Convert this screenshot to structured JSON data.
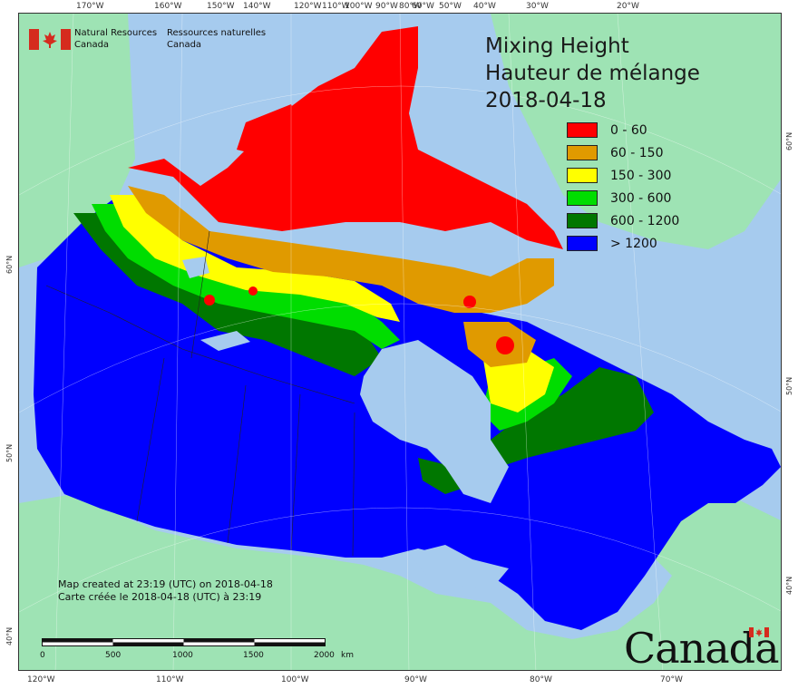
{
  "map": {
    "title_en": "Mixing Height",
    "title_fr": "Hauteur de mélange",
    "date": "2018-04-18",
    "agency": {
      "en_line1": "Natural Resources",
      "en_line2": "Canada",
      "fr_line1": "Ressources naturelles",
      "fr_line2": "Canada"
    },
    "legend": [
      {
        "label": "0 - 60",
        "color": "#ff0000"
      },
      {
        "label": "60 - 150",
        "color": "#e09a00"
      },
      {
        "label": "150 - 300",
        "color": "#ffff00"
      },
      {
        "label": "300 - 600",
        "color": "#00dd00"
      },
      {
        "label": "600 - 1200",
        "color": "#007700"
      },
      {
        "label": "> 1200",
        "color": "#0000ff"
      }
    ],
    "colors": {
      "ocean": "#a6cbee",
      "foreign_land": "#9ee3b4",
      "flag_red": "#d52b1e"
    },
    "credit_en": "Map created at 23:19 (UTC) on 2018-04-18",
    "credit_fr": "Carte créée le 2018-04-18 (UTC) à 23:19",
    "scale": {
      "labels": [
        "0",
        "500",
        "1000",
        "1500",
        "2000"
      ],
      "unit": "km"
    },
    "wordmark": "Canada",
    "graticule": {
      "top": [
        "170°W",
        "160°W",
        "150°W",
        "140°W",
        "120°W",
        "110°W",
        "100°W",
        "90°W",
        "80°W",
        "60°W",
        "50°W",
        "40°W",
        "30°W",
        "20°W"
      ],
      "bottom": [
        "120°W",
        "110°W",
        "100°W",
        "90°W",
        "80°W",
        "70°W"
      ],
      "left": [
        "60°N",
        "50°N",
        "40°N"
      ],
      "right": [
        "60°N",
        "50°N",
        "40°N"
      ]
    }
  }
}
